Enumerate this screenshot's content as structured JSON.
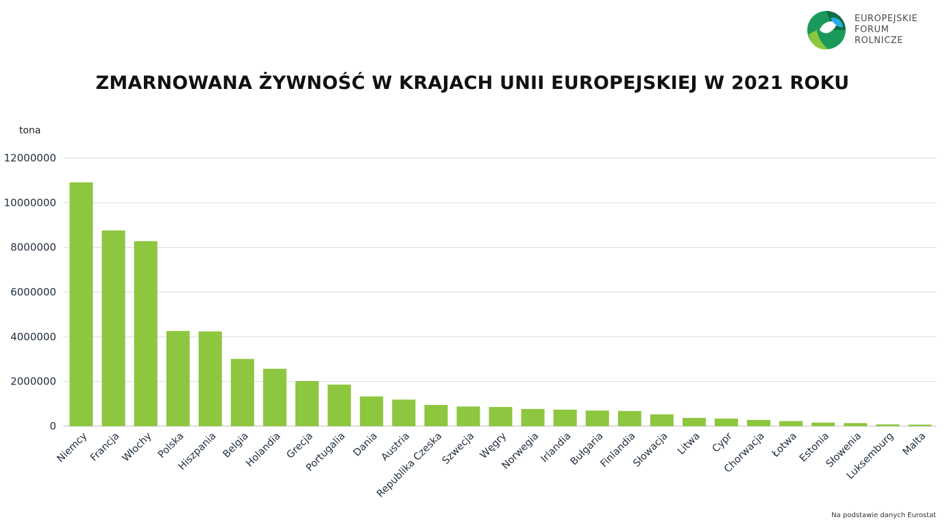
{
  "logo": {
    "lines": [
      "EUROPEJSKIE",
      "FORUM",
      "ROLNICZE"
    ]
  },
  "source_note": "Na podstawie danych Eurostat",
  "chart_data": {
    "type": "bar",
    "title": "ZMARNOWANA ŻYWNOŚĆ W KRAJACH UNII EUROPEJSKIEJ W 2021 ROKU",
    "ylabel": "tona",
    "xlabel": "",
    "ylim": [
      0,
      12000000
    ],
    "yticks": [
      "0",
      "2000000",
      "4000000",
      "6000000",
      "8000000",
      "10000000",
      "12000000"
    ],
    "grid": true,
    "bar_color": "#8dc63f",
    "categories": [
      "Niemcy",
      "Francja",
      "Włochy",
      "Polska",
      "Hiszpania",
      "Belgia",
      "Holandia",
      "Grecja",
      "Portugalia",
      "Dania",
      "Austria",
      "Republika Czeska",
      "Szwecja",
      "Węgry",
      "Norwegia",
      "Irlandia",
      "Bułgaria",
      "Finlandia",
      "Słowacja",
      "Litwa",
      "Cypr",
      "Chorwacja",
      "Łotwa",
      "Estonia",
      "Słowenia",
      "Luksemburg",
      "Malta"
    ],
    "values": [
      10910000,
      8760000,
      8280000,
      4260000,
      4240000,
      3010000,
      2570000,
      2020000,
      1860000,
      1330000,
      1190000,
      950000,
      880000,
      860000,
      770000,
      740000,
      700000,
      680000,
      530000,
      370000,
      340000,
      280000,
      230000,
      160000,
      140000,
      80000,
      70000
    ]
  }
}
